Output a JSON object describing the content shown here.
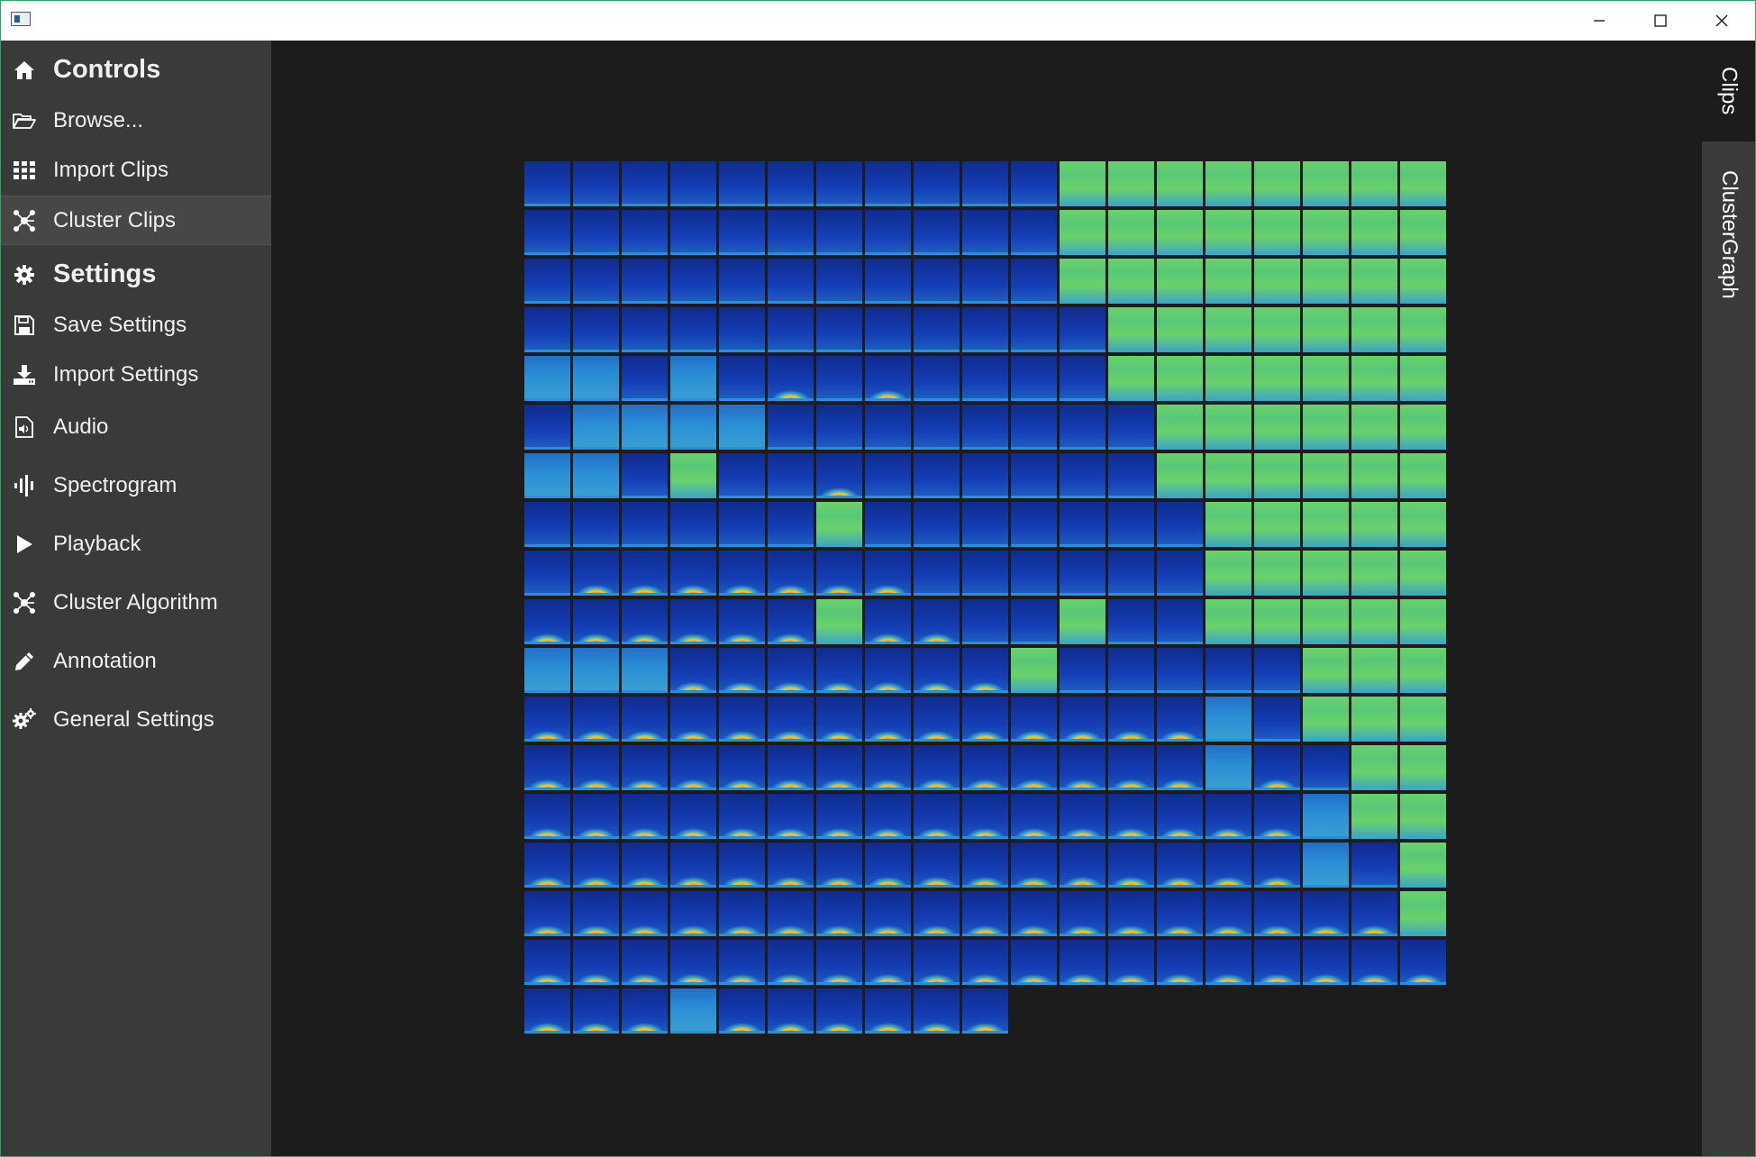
{
  "titlebar": {
    "icons": {
      "app": "app-window-icon",
      "minimize": "minimize-icon",
      "maximize": "maximize-icon",
      "close": "close-icon"
    }
  },
  "sidebar": {
    "sections": [
      {
        "label": "Controls",
        "icon": "home-icon",
        "header": true
      },
      {
        "label": "Browse...",
        "icon": "folder-open-icon"
      },
      {
        "label": "Import Clips",
        "icon": "grid-icon"
      },
      {
        "label": "Cluster Clips",
        "icon": "cluster-icon",
        "selected": true
      },
      {
        "label": "Settings",
        "icon": "gear-icon",
        "header": true
      },
      {
        "label": "Save Settings",
        "icon": "floppy-disk-icon"
      },
      {
        "label": "Import Settings",
        "icon": "download-icon"
      },
      {
        "label": "Audio",
        "icon": "audio-file-icon"
      },
      {
        "label": "Spectrogram",
        "icon": "spectrogram-bars-icon"
      },
      {
        "label": "Playback",
        "icon": "play-icon"
      },
      {
        "label": "Cluster Algorithm",
        "icon": "cluster-icon"
      },
      {
        "label": "Annotation",
        "icon": "pencil-icon"
      },
      {
        "label": "General Settings",
        "icon": "gears-icon"
      }
    ]
  },
  "right_tabs": {
    "clips": "Clips",
    "cluster_graph": "ClusterGraph"
  },
  "spectrogram_grid": {
    "columns": 19,
    "rows": 18,
    "last_row_count": 10,
    "colors": {
      "blue": "#143cb4",
      "cyan": "#2a8fd6",
      "green": "#6ad26a",
      "red": "#e8361c",
      "yellow": "#f0d020"
    },
    "row_profile": [
      [
        0,
        0,
        0,
        0,
        0,
        0,
        0,
        0,
        0,
        0,
        0,
        2,
        2,
        2,
        2,
        2,
        2,
        2,
        2
      ],
      [
        0,
        0,
        0,
        0,
        0,
        0,
        0,
        0,
        0,
        0,
        0,
        2,
        2,
        2,
        2,
        2,
        2,
        2,
        2
      ],
      [
        0,
        0,
        0,
        0,
        0,
        0,
        0,
        0,
        0,
        0,
        0,
        2,
        2,
        2,
        2,
        2,
        2,
        2,
        2
      ],
      [
        0,
        0,
        0,
        0,
        0,
        0,
        0,
        0,
        0,
        0,
        0,
        0,
        2,
        2,
        2,
        2,
        2,
        2,
        2
      ],
      [
        1,
        1,
        0,
        1,
        0,
        3,
        0,
        3,
        0,
        0,
        0,
        0,
        2,
        2,
        2,
        2,
        2,
        2,
        2
      ],
      [
        0,
        1,
        1,
        1,
        1,
        0,
        0,
        0,
        0,
        0,
        0,
        0,
        0,
        2,
        2,
        2,
        2,
        2,
        2
      ],
      [
        1,
        1,
        0,
        2,
        0,
        0,
        3,
        0,
        0,
        0,
        0,
        0,
        0,
        2,
        2,
        2,
        2,
        2,
        2
      ],
      [
        0,
        0,
        0,
        0,
        0,
        0,
        2,
        0,
        0,
        0,
        0,
        0,
        0,
        0,
        2,
        2,
        2,
        2,
        2
      ],
      [
        0,
        3,
        3,
        3,
        3,
        3,
        3,
        3,
        0,
        0,
        0,
        0,
        0,
        0,
        2,
        2,
        2,
        2,
        2
      ],
      [
        3,
        3,
        3,
        3,
        3,
        3,
        2,
        3,
        3,
        0,
        0,
        2,
        0,
        0,
        2,
        2,
        2,
        2,
        2
      ],
      [
        1,
        1,
        1,
        3,
        3,
        3,
        3,
        3,
        3,
        3,
        2,
        0,
        0,
        0,
        0,
        0,
        2,
        2,
        2
      ],
      [
        3,
        3,
        3,
        3,
        3,
        3,
        3,
        3,
        3,
        3,
        3,
        3,
        3,
        3,
        1,
        0,
        2,
        2,
        2
      ],
      [
        3,
        3,
        3,
        3,
        3,
        3,
        3,
        3,
        3,
        3,
        3,
        3,
        3,
        3,
        1,
        3,
        0,
        2,
        2
      ],
      [
        3,
        3,
        3,
        3,
        3,
        3,
        3,
        3,
        3,
        3,
        3,
        3,
        3,
        3,
        3,
        3,
        1,
        2,
        2
      ],
      [
        3,
        3,
        3,
        3,
        3,
        3,
        3,
        3,
        3,
        3,
        3,
        3,
        3,
        3,
        3,
        3,
        1,
        0,
        2
      ],
      [
        3,
        3,
        3,
        3,
        3,
        3,
        3,
        3,
        3,
        3,
        3,
        3,
        3,
        3,
        3,
        3,
        3,
        3,
        2
      ],
      [
        3,
        3,
        3,
        3,
        3,
        3,
        3,
        3,
        3,
        3,
        3,
        3,
        3,
        3,
        3,
        3,
        3,
        3,
        3
      ],
      [
        3,
        3,
        3,
        1,
        3,
        3,
        3,
        3,
        3,
        3
      ]
    ]
  }
}
